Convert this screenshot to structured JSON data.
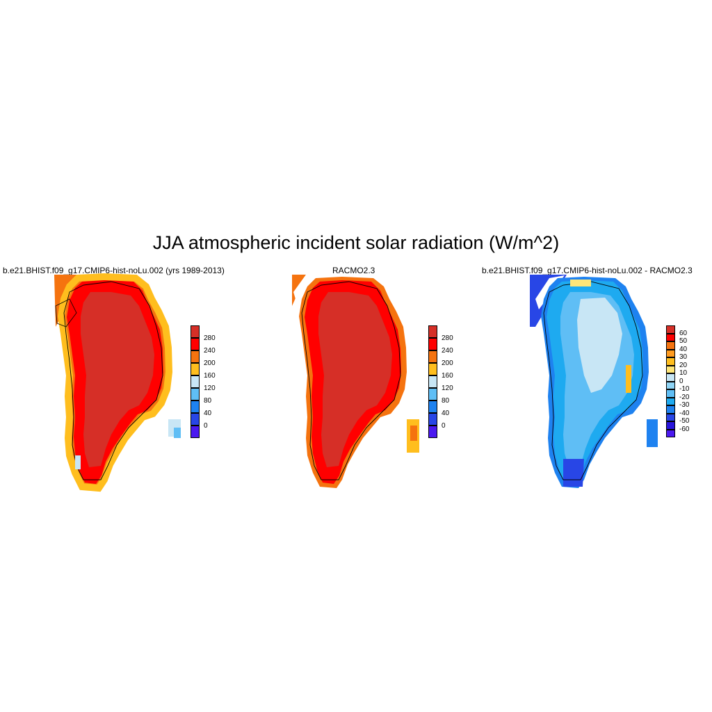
{
  "title": "JJA atmospheric incident solar radiation (W/m^2)",
  "panels": [
    {
      "title": "b.e21.BHIST.f09_g17.CMIP6-hist-noLu.002 (yrs 1989-2013)",
      "colorbar": {
        "labels": [
          "280",
          "240",
          "200",
          "160",
          "120",
          "80",
          "40",
          "0"
        ],
        "colors": [
          "#d62f27",
          "#ff0000",
          "#f5730f",
          "#ffbe1e",
          "#c8e6f5",
          "#5fbef5",
          "#1e82f0",
          "#2846e6",
          "#4b19f0"
        ]
      },
      "regions": [
        "interior",
        "margin",
        "outer",
        "edge",
        "coast"
      ]
    },
    {
      "title": "RACMO2.3",
      "colorbar": {
        "labels": [
          "280",
          "240",
          "200",
          "160",
          "120",
          "80",
          "40",
          "0"
        ],
        "colors": [
          "#d62f27",
          "#ff0000",
          "#f5730f",
          "#ffbe1e",
          "#c8e6f5",
          "#5fbef5",
          "#1e82f0",
          "#2846e6",
          "#4b19f0"
        ]
      },
      "regions": [
        "interior",
        "margin",
        "outer",
        "edge",
        "coast"
      ]
    },
    {
      "title": "b.e21.BHIST.f09_g17.CMIP6-hist-noLu.002 - RACMO2.3",
      "colorbar": {
        "labels": [
          "60",
          "50",
          "40",
          "30",
          "20",
          "10",
          "0",
          "-10",
          "-20",
          "-30",
          "-40",
          "-50",
          "-60"
        ],
        "colors": [
          "#d62f27",
          "#ff0000",
          "#f5730f",
          "#ff9b1e",
          "#ffbe1e",
          "#ffe678",
          "#c8e6f5",
          "#8fd4f5",
          "#5fbef5",
          "#1eaaf0",
          "#1e82f0",
          "#2846e6",
          "#2814dc",
          "#4b19f0"
        ]
      }
    }
  ]
}
